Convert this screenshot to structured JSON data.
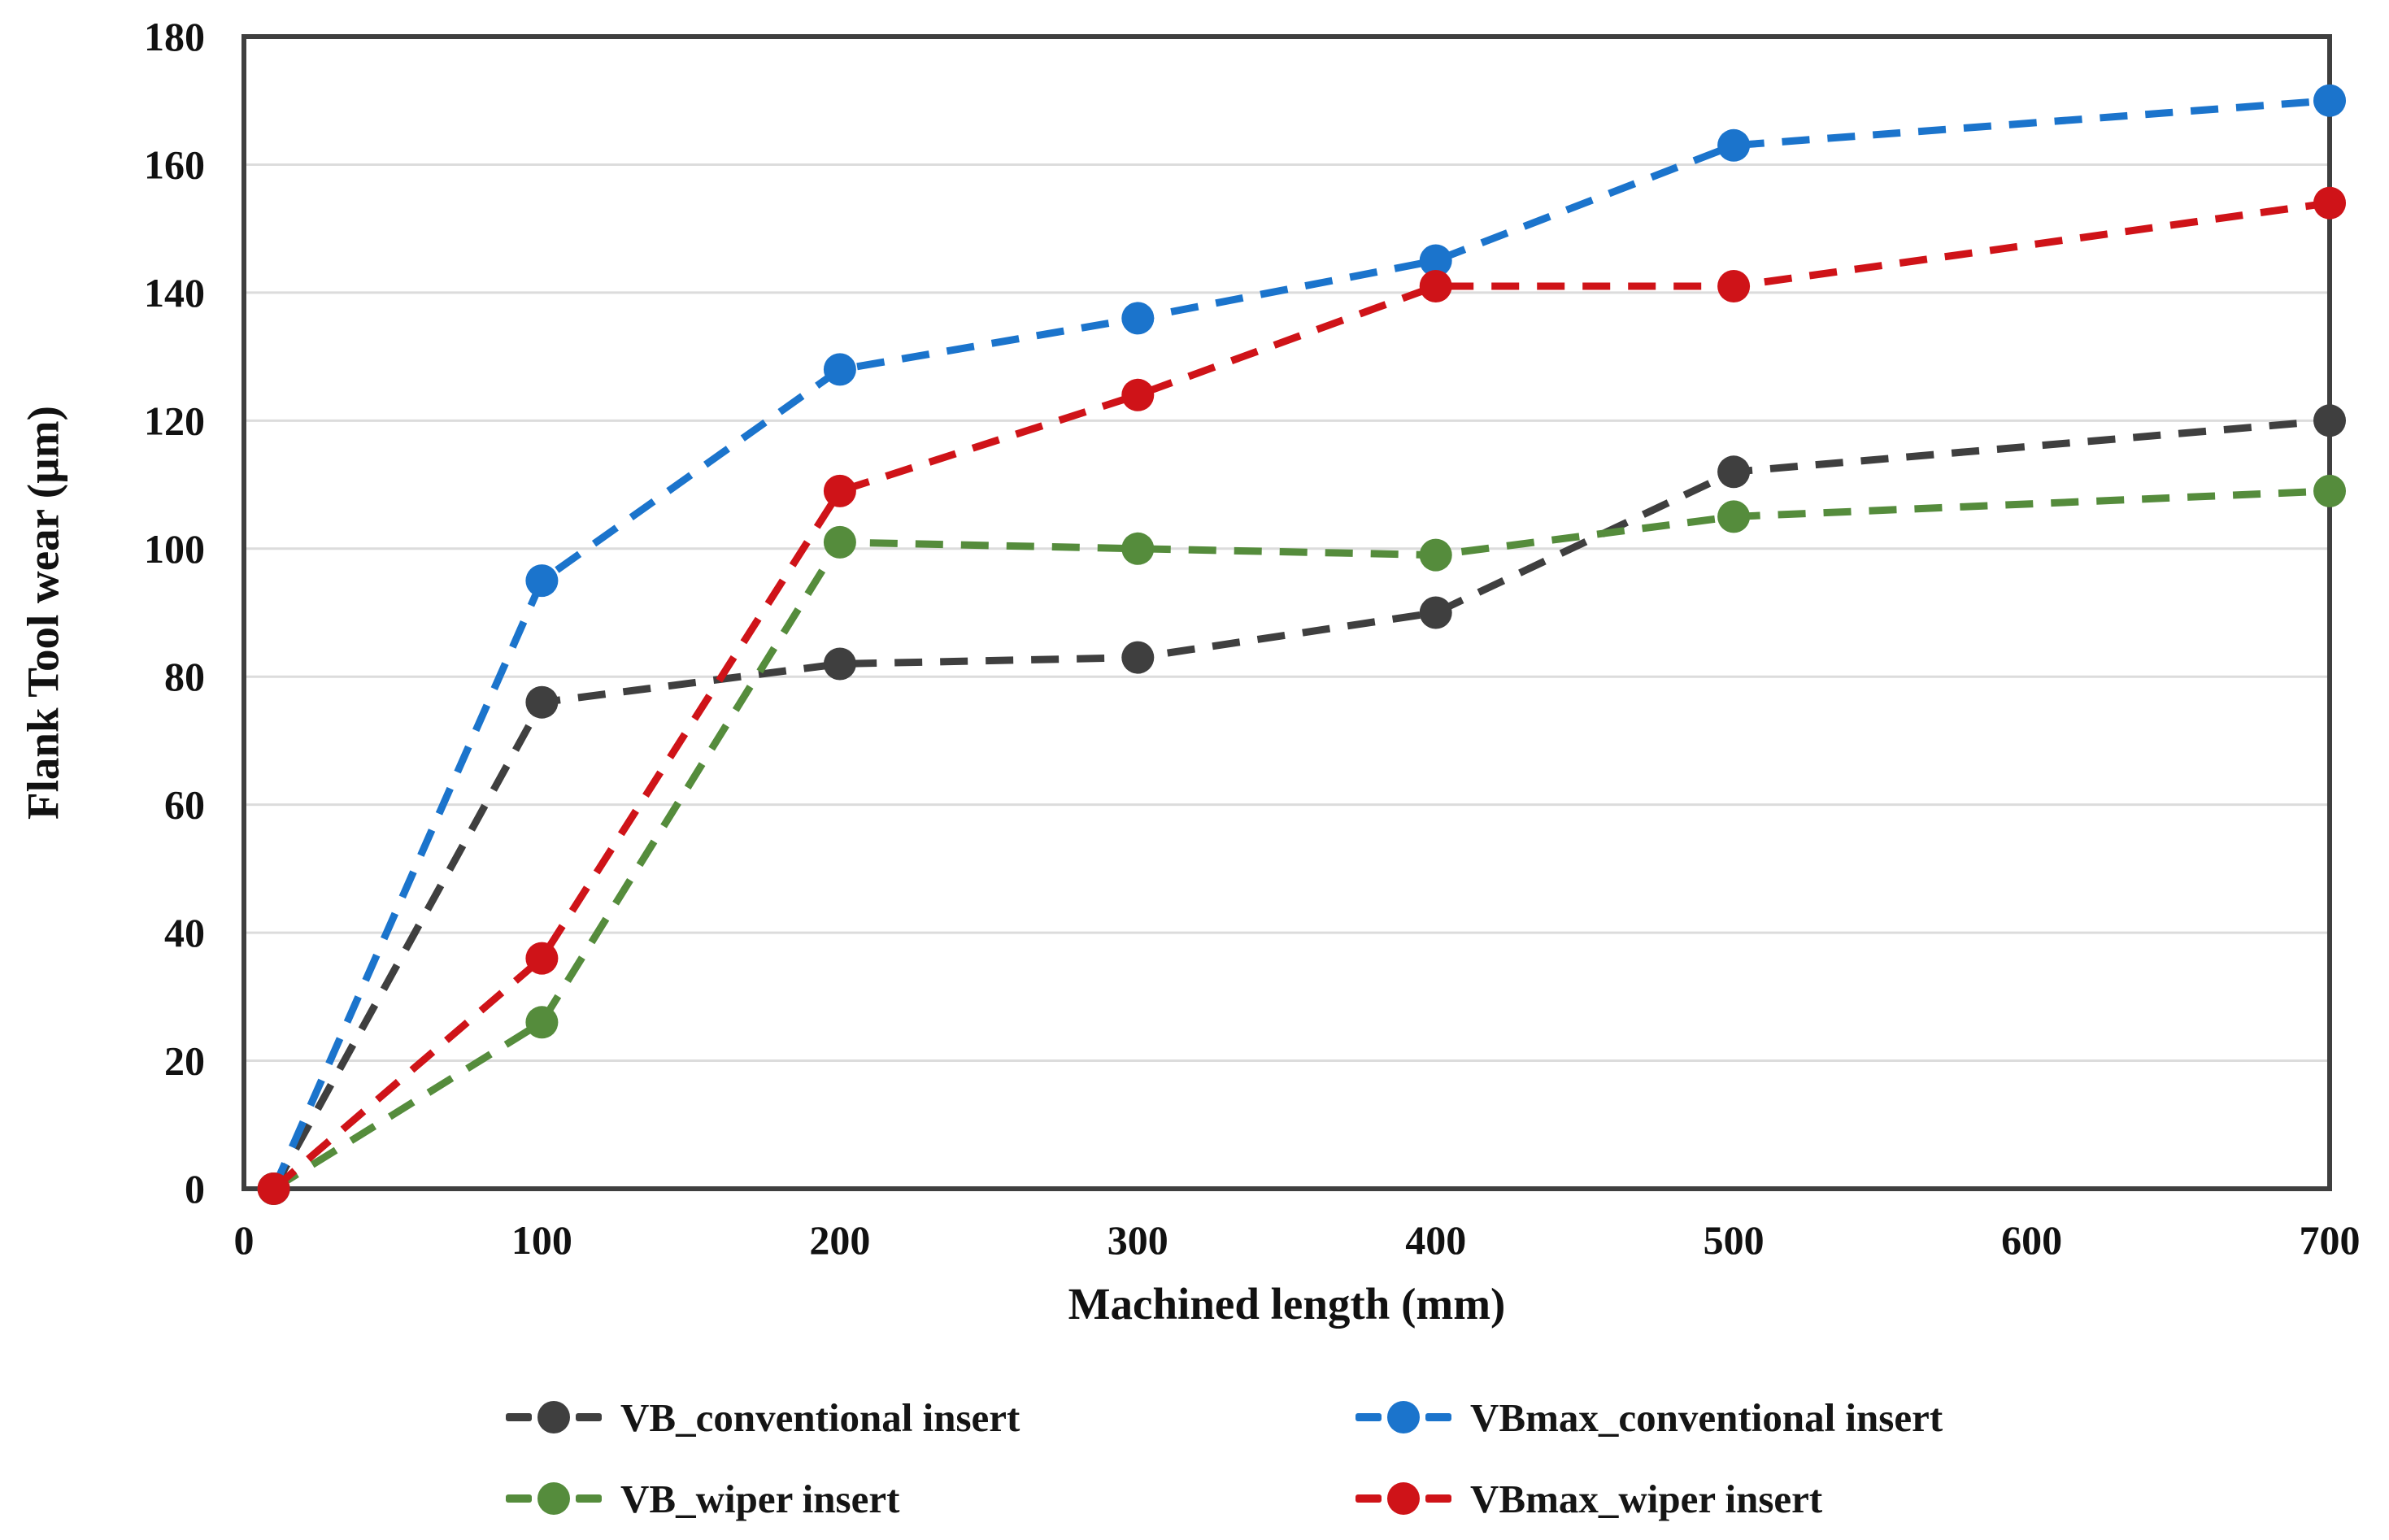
{
  "style": {
    "background": "#ffffff",
    "plot_border_color": "#3f3f3f",
    "gridline_color": "#dcdcdc",
    "text_color": "#111111"
  },
  "chart_data": {
    "type": "line",
    "title": "",
    "xlabel": "Machined length (mm)",
    "ylabel": "Flank Tool wear (µm)",
    "line_style": "dashed",
    "marker": "circle",
    "grid": "horizontal-only",
    "legend_position": "bottom",
    "xlim": [
      0,
      700
    ],
    "ylim": [
      0,
      180
    ],
    "x_ticks": [
      0,
      100,
      200,
      300,
      400,
      500,
      600,
      700
    ],
    "y_ticks": [
      0,
      20,
      40,
      60,
      80,
      100,
      120,
      140,
      160,
      180
    ],
    "x": [
      10,
      100,
      200,
      300,
      400,
      500,
      700
    ],
    "series": [
      {
        "name": "VB_conventional insert",
        "color": "#3f3f3f",
        "values": [
          0,
          76,
          82,
          83,
          90,
          112,
          120
        ]
      },
      {
        "name": "VBmax_conventional insert",
        "color": "#1b74cc",
        "values": [
          0,
          95,
          128,
          136,
          145,
          163,
          170
        ]
      },
      {
        "name": "VB_wiper insert",
        "color": "#558c3c",
        "values": [
          0,
          26,
          101,
          100,
          99,
          105,
          109
        ]
      },
      {
        "name": "VBmax_wiper insert",
        "color": "#cf1318",
        "values": [
          0,
          36,
          109,
          124,
          141,
          141,
          154
        ]
      }
    ]
  },
  "legend": {
    "row1_col1": "VB_conventional insert",
    "row1_col2": "VBmax_conventional insert",
    "row2_col1": "VB_wiper insert",
    "row2_col2": "VBmax_wiper insert"
  }
}
